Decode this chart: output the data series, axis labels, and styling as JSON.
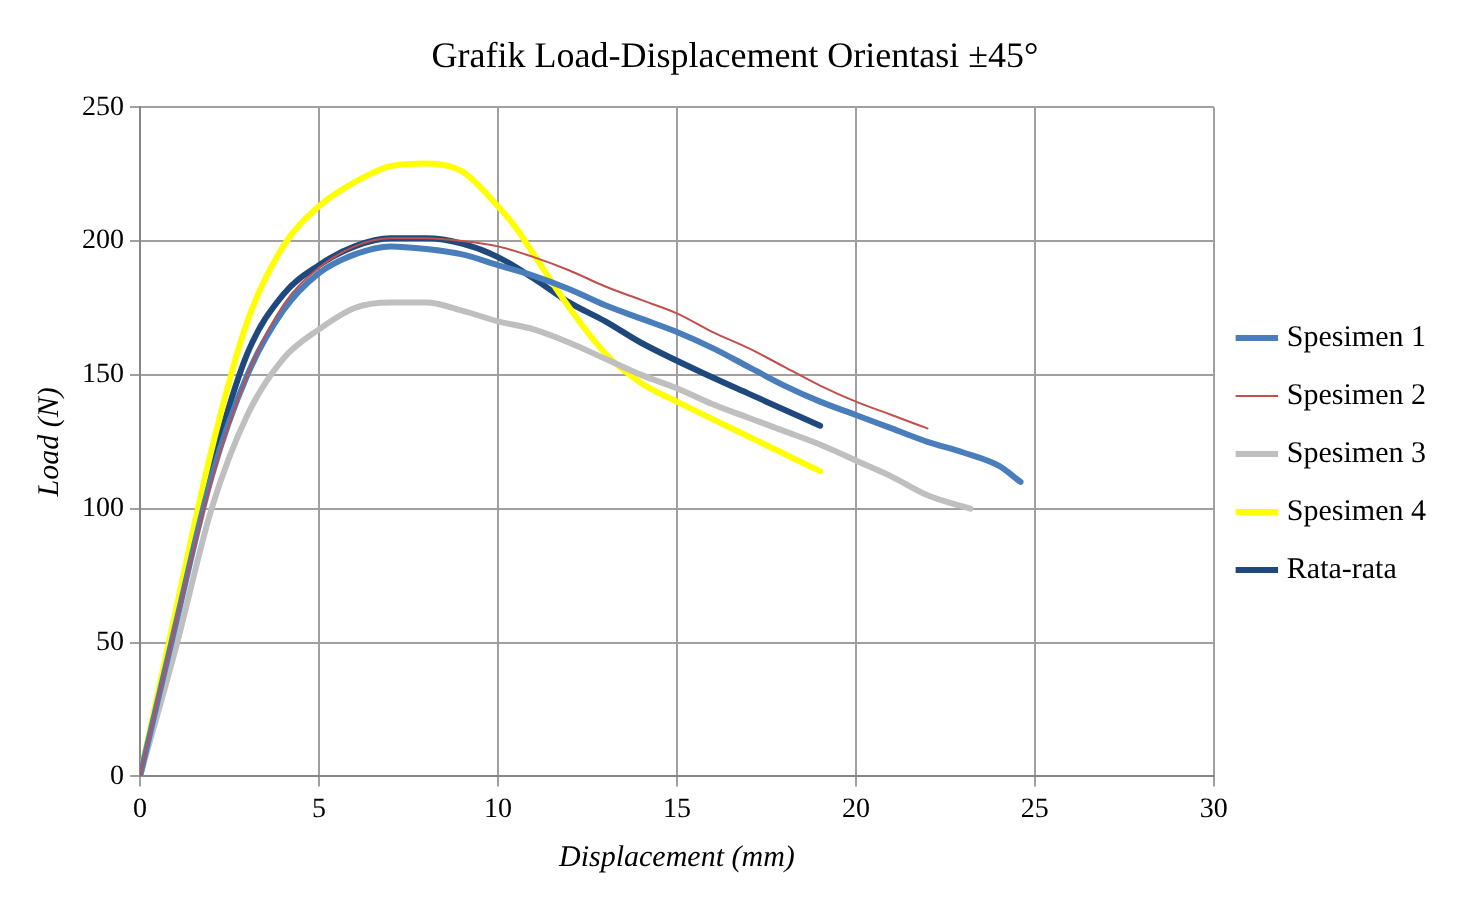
{
  "chart_data": {
    "type": "line",
    "title": "Grafik Load-Displacement Orientasi ±45°",
    "xlabel": "Displacement (mm)",
    "ylabel": "Load (N)",
    "xlim": [
      0,
      30
    ],
    "xticks": [
      0,
      5,
      10,
      15,
      20,
      25,
      30
    ],
    "ylim": [
      0,
      250
    ],
    "yticks": [
      0,
      50,
      100,
      150,
      200,
      250
    ],
    "grid": true,
    "legend": "right",
    "marker": "none",
    "line_style": "solid",
    "series": [
      {
        "name": "Spesimen 1",
        "color": "#4a7ebb",
        "x": [
          0,
          1,
          2,
          3,
          4,
          5,
          6,
          7,
          8,
          9,
          10,
          11,
          12,
          13,
          14,
          15,
          16,
          17,
          18,
          19,
          20,
          21,
          22,
          23,
          24,
          24.6
        ],
        "values": [
          0,
          57,
          112,
          150,
          174,
          188,
          195,
          198,
          197,
          195,
          191,
          187,
          182,
          176,
          171,
          166,
          160,
          153,
          146,
          140,
          135,
          130,
          125,
          121,
          116,
          110
        ]
      },
      {
        "name": "Spesimen 2",
        "color": "#c0504d",
        "x": [
          0,
          1,
          2,
          3,
          4,
          5,
          6,
          7,
          8,
          9,
          10,
          11,
          12,
          13,
          14,
          15,
          16,
          17,
          18,
          19,
          20,
          21,
          22
        ],
        "values": [
          0,
          57,
          110,
          150,
          176,
          190,
          198,
          201,
          201,
          200,
          198,
          194,
          189,
          183,
          178,
          173,
          166,
          160,
          153,
          146,
          140,
          135,
          130
        ]
      },
      {
        "name": "Spesimen 3",
        "color": "#bfbfbf",
        "x": [
          0,
          1,
          2,
          3,
          4,
          5,
          6,
          7,
          8,
          9,
          10,
          11,
          12,
          13,
          14,
          15,
          16,
          17,
          18,
          19,
          20,
          21,
          22,
          23.2
        ],
        "values": [
          0,
          48,
          100,
          135,
          156,
          167,
          175,
          177,
          177,
          174,
          170,
          167,
          162,
          156,
          150,
          145,
          139,
          134,
          129,
          124,
          118,
          112,
          105,
          100
        ]
      },
      {
        "name": "Spesimen 4",
        "color": "#ffff00",
        "x": [
          0,
          1,
          2,
          3,
          4,
          5,
          6,
          7,
          8,
          9,
          10,
          10.5,
          11,
          12,
          13,
          14,
          15,
          17,
          19
        ],
        "values": [
          0,
          62,
          122,
          170,
          198,
          213,
          222,
          228,
          229,
          226,
          213,
          205,
          195,
          175,
          158,
          147,
          140,
          127,
          114
        ]
      },
      {
        "name": "Rata-rata",
        "color": "#1f497d",
        "x": [
          0,
          1,
          2,
          3,
          4,
          5,
          6,
          7,
          8,
          9,
          10,
          11,
          12,
          13,
          14,
          16,
          17,
          18,
          19
        ],
        "values": [
          0,
          58,
          115,
          158,
          180,
          191,
          198,
          201,
          201,
          199,
          194,
          186,
          177,
          170,
          162,
          149,
          143,
          137,
          131
        ]
      }
    ]
  }
}
